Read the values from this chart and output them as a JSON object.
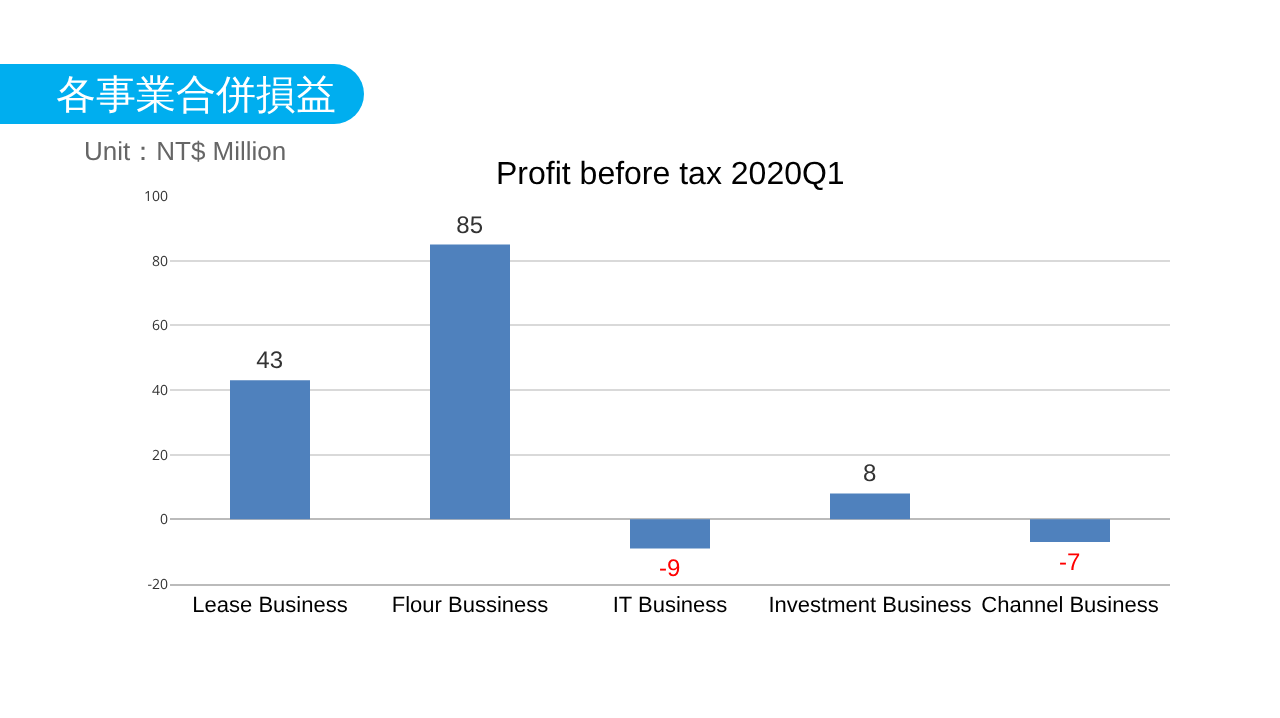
{
  "chart_data": {
    "type": "bar",
    "title": "各事業合併損益",
    "subtitle": "Unit：NT$ Million",
    "annotations": [
      "Profit before tax 2020Q1"
    ],
    "categories": [
      "Lease Business",
      "Flour Bussiness",
      "IT Business",
      "Investment Business",
      "Channel Business"
    ],
    "values": [
      43,
      85,
      -9,
      8,
      -7
    ],
    "color": "#4f81bd",
    "ylim": [
      -20,
      100
    ],
    "yticks": [
      -20,
      0,
      20,
      40,
      60,
      80,
      100
    ],
    "grid": "y",
    "data_labels": true
  }
}
